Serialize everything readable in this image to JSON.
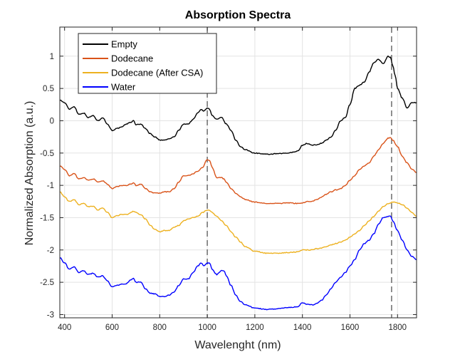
{
  "chart_data": {
    "type": "line",
    "title": "Absorption Spectra",
    "xlabel": "Wavelenght (nm)",
    "ylabel": "Normalized Absorption (a.u.)",
    "xlim": [
      380,
      1880
    ],
    "ylim": [
      -3.05,
      1.45
    ],
    "xticks": [
      400,
      600,
      800,
      1000,
      1200,
      1400,
      1600,
      1800
    ],
    "yticks": [
      1,
      0.5,
      0,
      -0.5,
      -1,
      -1.5,
      -2,
      -2.5,
      -3
    ],
    "grid": true,
    "legend_position": "top-left",
    "vlines": [
      1000,
      1775
    ],
    "vline_style": "dashed",
    "series": [
      {
        "name": "Empty",
        "color": "#000000",
        "points": [
          [
            380,
            0.32
          ],
          [
            400,
            0.28
          ],
          [
            420,
            0.18
          ],
          [
            440,
            0.22
          ],
          [
            460,
            0.1
          ],
          [
            480,
            0.12
          ],
          [
            500,
            0.05
          ],
          [
            520,
            0.08
          ],
          [
            540,
            0.0
          ],
          [
            560,
            0.05
          ],
          [
            580,
            -0.05
          ],
          [
            600,
            -0.15
          ],
          [
            620,
            -0.12
          ],
          [
            640,
            -0.1
          ],
          [
            660,
            -0.05
          ],
          [
            680,
            -0.02
          ],
          [
            690,
            0.0
          ],
          [
            700,
            -0.06
          ],
          [
            720,
            -0.05
          ],
          [
            740,
            -0.12
          ],
          [
            760,
            -0.2
          ],
          [
            780,
            -0.25
          ],
          [
            800,
            -0.3
          ],
          [
            820,
            -0.3
          ],
          [
            840,
            -0.28
          ],
          [
            860,
            -0.25
          ],
          [
            880,
            -0.15
          ],
          [
            900,
            -0.05
          ],
          [
            920,
            -0.05
          ],
          [
            940,
            0.02
          ],
          [
            960,
            0.12
          ],
          [
            975,
            0.18
          ],
          [
            985,
            0.15
          ],
          [
            1000,
            0.2
          ],
          [
            1010,
            0.18
          ],
          [
            1020,
            0.08
          ],
          [
            1040,
            0.02
          ],
          [
            1060,
            0.05
          ],
          [
            1080,
            -0.05
          ],
          [
            1100,
            -0.15
          ],
          [
            1120,
            -0.3
          ],
          [
            1140,
            -0.4
          ],
          [
            1160,
            -0.45
          ],
          [
            1200,
            -0.5
          ],
          [
            1250,
            -0.52
          ],
          [
            1300,
            -0.51
          ],
          [
            1340,
            -0.5
          ],
          [
            1380,
            -0.47
          ],
          [
            1400,
            -0.38
          ],
          [
            1420,
            -0.35
          ],
          [
            1440,
            -0.38
          ],
          [
            1460,
            -0.37
          ],
          [
            1480,
            -0.35
          ],
          [
            1500,
            -0.3
          ],
          [
            1520,
            -0.25
          ],
          [
            1540,
            -0.15
          ],
          [
            1560,
            0.0
          ],
          [
            1580,
            0.05
          ],
          [
            1600,
            0.25
          ],
          [
            1620,
            0.5
          ],
          [
            1640,
            0.55
          ],
          [
            1660,
            0.6
          ],
          [
            1680,
            0.75
          ],
          [
            1700,
            0.9
          ],
          [
            1720,
            0.95
          ],
          [
            1740,
            0.88
          ],
          [
            1760,
            1.0
          ],
          [
            1770,
            0.98
          ],
          [
            1780,
            0.85
          ],
          [
            1790,
            0.7
          ],
          [
            1800,
            0.5
          ],
          [
            1820,
            0.35
          ],
          [
            1840,
            0.2
          ],
          [
            1860,
            0.28
          ],
          [
            1880,
            0.28
          ]
        ]
      },
      {
        "name": "Dodecane",
        "color": "#D95319",
        "points": [
          [
            380,
            -0.7
          ],
          [
            400,
            -0.75
          ],
          [
            420,
            -0.85
          ],
          [
            440,
            -0.82
          ],
          [
            460,
            -0.9
          ],
          [
            480,
            -0.88
          ],
          [
            500,
            -0.92
          ],
          [
            520,
            -0.9
          ],
          [
            540,
            -0.95
          ],
          [
            560,
            -0.93
          ],
          [
            580,
            -0.98
          ],
          [
            600,
            -1.05
          ],
          [
            620,
            -1.02
          ],
          [
            640,
            -1.0
          ],
          [
            660,
            -1.0
          ],
          [
            680,
            -0.98
          ],
          [
            690,
            -0.96
          ],
          [
            700,
            -1.0
          ],
          [
            720,
            -0.98
          ],
          [
            740,
            -1.05
          ],
          [
            760,
            -1.1
          ],
          [
            780,
            -1.12
          ],
          [
            800,
            -1.12
          ],
          [
            820,
            -1.1
          ],
          [
            840,
            -1.1
          ],
          [
            860,
            -1.05
          ],
          [
            880,
            -0.95
          ],
          [
            900,
            -0.85
          ],
          [
            920,
            -0.85
          ],
          [
            940,
            -0.82
          ],
          [
            960,
            -0.78
          ],
          [
            980,
            -0.72
          ],
          [
            1000,
            -0.6
          ],
          [
            1010,
            -0.62
          ],
          [
            1020,
            -0.72
          ],
          [
            1040,
            -0.88
          ],
          [
            1060,
            -0.88
          ],
          [
            1070,
            -0.9
          ],
          [
            1080,
            -0.95
          ],
          [
            1100,
            -1.05
          ],
          [
            1120,
            -1.12
          ],
          [
            1140,
            -1.18
          ],
          [
            1160,
            -1.22
          ],
          [
            1200,
            -1.26
          ],
          [
            1250,
            -1.28
          ],
          [
            1300,
            -1.28
          ],
          [
            1340,
            -1.27
          ],
          [
            1380,
            -1.28
          ],
          [
            1400,
            -1.27
          ],
          [
            1420,
            -1.25
          ],
          [
            1440,
            -1.25
          ],
          [
            1460,
            -1.22
          ],
          [
            1480,
            -1.18
          ],
          [
            1500,
            -1.14
          ],
          [
            1520,
            -1.1
          ],
          [
            1540,
            -1.07
          ],
          [
            1560,
            -1.05
          ],
          [
            1580,
            -1.0
          ],
          [
            1600,
            -0.92
          ],
          [
            1620,
            -0.85
          ],
          [
            1640,
            -0.75
          ],
          [
            1660,
            -0.7
          ],
          [
            1680,
            -0.65
          ],
          [
            1700,
            -0.55
          ],
          [
            1720,
            -0.45
          ],
          [
            1740,
            -0.35
          ],
          [
            1760,
            -0.27
          ],
          [
            1770,
            -0.26
          ],
          [
            1780,
            -0.3
          ],
          [
            1800,
            -0.4
          ],
          [
            1820,
            -0.55
          ],
          [
            1840,
            -0.65
          ],
          [
            1860,
            -0.75
          ],
          [
            1880,
            -0.8
          ]
        ]
      },
      {
        "name": "Dodecane (After CSA)",
        "color": "#EDB120",
        "points": [
          [
            380,
            -1.1
          ],
          [
            400,
            -1.18
          ],
          [
            420,
            -1.25
          ],
          [
            440,
            -1.22
          ],
          [
            460,
            -1.3
          ],
          [
            480,
            -1.28
          ],
          [
            500,
            -1.33
          ],
          [
            520,
            -1.32
          ],
          [
            540,
            -1.38
          ],
          [
            560,
            -1.35
          ],
          [
            580,
            -1.42
          ],
          [
            600,
            -1.5
          ],
          [
            620,
            -1.47
          ],
          [
            640,
            -1.45
          ],
          [
            660,
            -1.45
          ],
          [
            680,
            -1.42
          ],
          [
            690,
            -1.4
          ],
          [
            700,
            -1.42
          ],
          [
            720,
            -1.45
          ],
          [
            740,
            -1.52
          ],
          [
            760,
            -1.62
          ],
          [
            780,
            -1.68
          ],
          [
            800,
            -1.72
          ],
          [
            820,
            -1.7
          ],
          [
            840,
            -1.7
          ],
          [
            860,
            -1.65
          ],
          [
            880,
            -1.62
          ],
          [
            900,
            -1.55
          ],
          [
            920,
            -1.52
          ],
          [
            940,
            -1.5
          ],
          [
            960,
            -1.48
          ],
          [
            980,
            -1.42
          ],
          [
            1000,
            -1.38
          ],
          [
            1010,
            -1.39
          ],
          [
            1020,
            -1.42
          ],
          [
            1040,
            -1.48
          ],
          [
            1060,
            -1.55
          ],
          [
            1080,
            -1.62
          ],
          [
            1100,
            -1.72
          ],
          [
            1120,
            -1.8
          ],
          [
            1140,
            -1.88
          ],
          [
            1160,
            -1.95
          ],
          [
            1200,
            -2.02
          ],
          [
            1250,
            -2.05
          ],
          [
            1300,
            -2.05
          ],
          [
            1340,
            -2.04
          ],
          [
            1380,
            -2.03
          ],
          [
            1400,
            -2.0
          ],
          [
            1420,
            -2.0
          ],
          [
            1440,
            -2.0
          ],
          [
            1460,
            -1.98
          ],
          [
            1480,
            -1.97
          ],
          [
            1500,
            -1.95
          ],
          [
            1520,
            -1.92
          ],
          [
            1540,
            -1.9
          ],
          [
            1560,
            -1.88
          ],
          [
            1580,
            -1.85
          ],
          [
            1600,
            -1.8
          ],
          [
            1620,
            -1.75
          ],
          [
            1640,
            -1.7
          ],
          [
            1660,
            -1.62
          ],
          [
            1680,
            -1.55
          ],
          [
            1700,
            -1.48
          ],
          [
            1720,
            -1.4
          ],
          [
            1740,
            -1.33
          ],
          [
            1760,
            -1.28
          ],
          [
            1780,
            -1.26
          ],
          [
            1800,
            -1.27
          ],
          [
            1820,
            -1.3
          ],
          [
            1840,
            -1.35
          ],
          [
            1860,
            -1.42
          ],
          [
            1880,
            -1.48
          ]
        ]
      },
      {
        "name": "Water",
        "color": "#0000FF",
        "points": [
          [
            380,
            -2.12
          ],
          [
            400,
            -2.2
          ],
          [
            420,
            -2.3
          ],
          [
            440,
            -2.26
          ],
          [
            460,
            -2.35
          ],
          [
            480,
            -2.32
          ],
          [
            500,
            -2.38
          ],
          [
            520,
            -2.36
          ],
          [
            540,
            -2.42
          ],
          [
            560,
            -2.4
          ],
          [
            580,
            -2.48
          ],
          [
            600,
            -2.57
          ],
          [
            620,
            -2.55
          ],
          [
            640,
            -2.53
          ],
          [
            660,
            -2.52
          ],
          [
            680,
            -2.46
          ],
          [
            690,
            -2.44
          ],
          [
            700,
            -2.5
          ],
          [
            720,
            -2.5
          ],
          [
            740,
            -2.6
          ],
          [
            760,
            -2.67
          ],
          [
            780,
            -2.68
          ],
          [
            800,
            -2.72
          ],
          [
            820,
            -2.72
          ],
          [
            840,
            -2.7
          ],
          [
            860,
            -2.65
          ],
          [
            880,
            -2.55
          ],
          [
            900,
            -2.45
          ],
          [
            920,
            -2.45
          ],
          [
            940,
            -2.35
          ],
          [
            960,
            -2.25
          ],
          [
            975,
            -2.2
          ],
          [
            985,
            -2.25
          ],
          [
            1000,
            -2.2
          ],
          [
            1010,
            -2.2
          ],
          [
            1020,
            -2.3
          ],
          [
            1040,
            -2.38
          ],
          [
            1060,
            -2.32
          ],
          [
            1070,
            -2.32
          ],
          [
            1080,
            -2.4
          ],
          [
            1100,
            -2.55
          ],
          [
            1120,
            -2.7
          ],
          [
            1140,
            -2.8
          ],
          [
            1160,
            -2.85
          ],
          [
            1200,
            -2.9
          ],
          [
            1250,
            -2.92
          ],
          [
            1300,
            -2.91
          ],
          [
            1340,
            -2.89
          ],
          [
            1380,
            -2.88
          ],
          [
            1400,
            -2.82
          ],
          [
            1420,
            -2.84
          ],
          [
            1440,
            -2.85
          ],
          [
            1460,
            -2.83
          ],
          [
            1480,
            -2.78
          ],
          [
            1500,
            -2.7
          ],
          [
            1520,
            -2.6
          ],
          [
            1540,
            -2.5
          ],
          [
            1560,
            -2.42
          ],
          [
            1580,
            -2.35
          ],
          [
            1600,
            -2.25
          ],
          [
            1620,
            -2.15
          ],
          [
            1640,
            -2.0
          ],
          [
            1660,
            -1.9
          ],
          [
            1680,
            -1.85
          ],
          [
            1700,
            -1.75
          ],
          [
            1720,
            -1.6
          ],
          [
            1740,
            -1.5
          ],
          [
            1760,
            -1.48
          ],
          [
            1770,
            -1.47
          ],
          [
            1780,
            -1.55
          ],
          [
            1800,
            -1.7
          ],
          [
            1820,
            -1.85
          ],
          [
            1840,
            -2.0
          ],
          [
            1860,
            -2.1
          ],
          [
            1880,
            -2.15
          ]
        ]
      }
    ]
  }
}
